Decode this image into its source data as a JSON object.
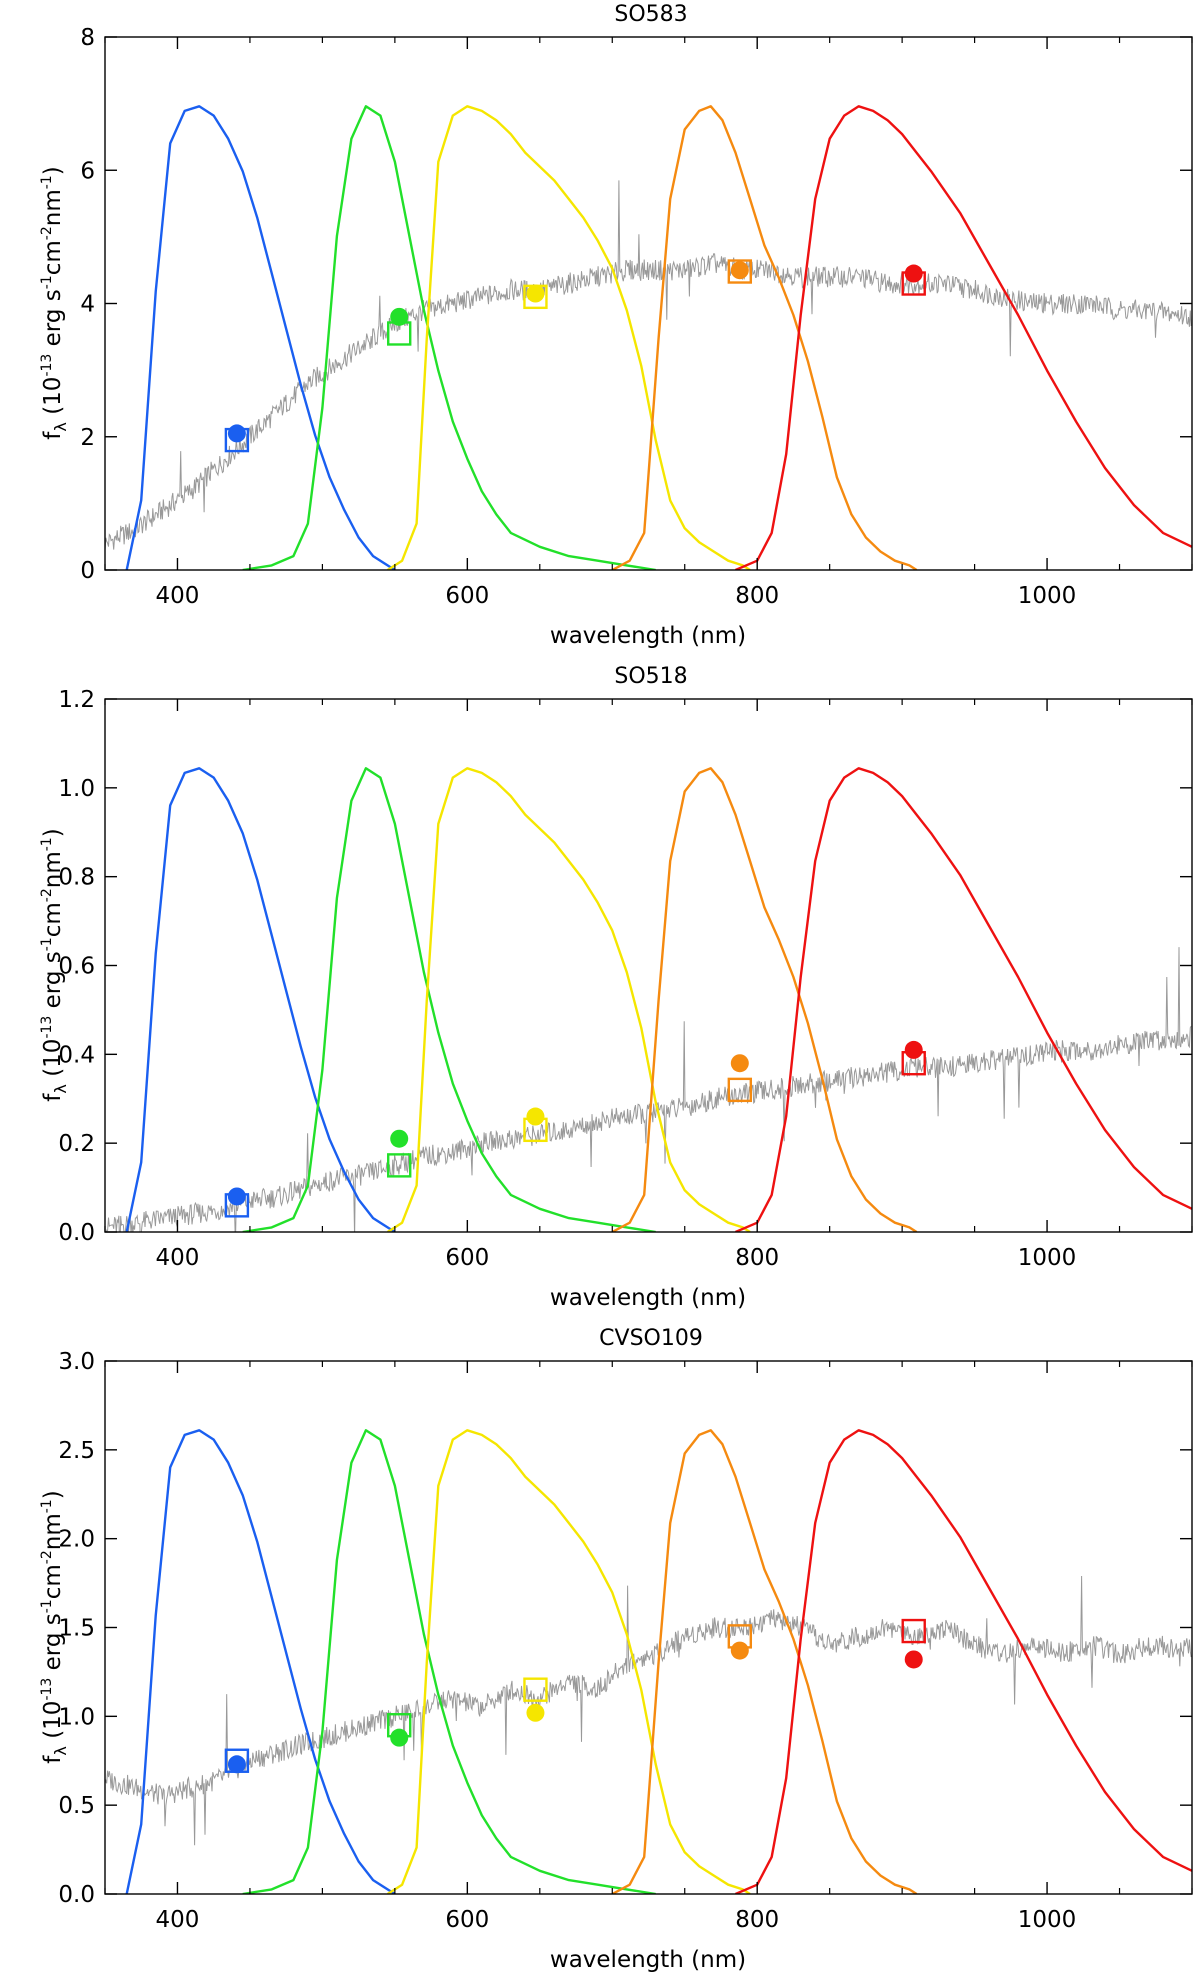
{
  "chart_data": [
    {
      "type": "line",
      "title": "SO583",
      "xlabel": "wavelength (nm)",
      "ylabel_parts": {
        "f": "f",
        "sub": "λ",
        "open": " (10",
        "exp1": "-13",
        "erg": " erg s",
        "exp2": "-1",
        "cm": "cm",
        "exp3": "-2",
        "nm": "nm",
        "exp4": "-1",
        "close": ")"
      },
      "xlim": [
        350,
        1100
      ],
      "ylim": [
        0,
        8
      ],
      "xticks": [
        400,
        600,
        800,
        1000
      ],
      "yticks": [
        0,
        2,
        4,
        6,
        8
      ],
      "ytick_labels": [
        "0",
        "2",
        "4",
        "6",
        "8"
      ],
      "spectrum": {
        "x": [
          350,
          370,
          390,
          410,
          430,
          450,
          470,
          490,
          510,
          530,
          550,
          570,
          590,
          610,
          630,
          650,
          670,
          690,
          710,
          730,
          750,
          770,
          790,
          810,
          830,
          850,
          870,
          890,
          910,
          930,
          950,
          970,
          990,
          1010,
          1030,
          1050,
          1070,
          1100
        ],
        "y": [
          0.4,
          0.6,
          0.9,
          1.2,
          1.6,
          2.0,
          2.4,
          2.8,
          3.1,
          3.4,
          3.7,
          3.9,
          4.0,
          4.1,
          4.2,
          4.2,
          4.3,
          4.4,
          4.5,
          4.5,
          4.5,
          4.6,
          4.5,
          4.5,
          4.4,
          4.4,
          4.4,
          4.3,
          4.3,
          4.3,
          4.2,
          4.1,
          4.0,
          4.0,
          4.0,
          3.9,
          3.9,
          3.8
        ]
      },
      "synthetic_photometry": [
        {
          "band": "blue",
          "x": 441,
          "y": 1.95
        },
        {
          "band": "green",
          "x": 553,
          "y": 3.55
        },
        {
          "band": "yellow",
          "x": 647,
          "y": 4.1
        },
        {
          "band": "orange",
          "x": 788,
          "y": 4.48
        },
        {
          "band": "red",
          "x": 908,
          "y": 4.3
        }
      ],
      "observed_photometry": [
        {
          "band": "blue",
          "x": 441,
          "y": 2.05
        },
        {
          "band": "green",
          "x": 553,
          "y": 3.8
        },
        {
          "band": "yellow",
          "x": 647,
          "y": 4.15
        },
        {
          "band": "orange",
          "x": 788,
          "y": 4.5
        },
        {
          "band": "red",
          "x": 908,
          "y": 4.45
        }
      ]
    },
    {
      "type": "line",
      "title": "SO518",
      "xlabel": "wavelength (nm)",
      "ylabel_parts": {
        "f": "f",
        "sub": "λ",
        "open": " (10",
        "exp1": "-13",
        "erg": " erg s",
        "exp2": "-1",
        "cm": "cm",
        "exp3": "-2",
        "nm": "nm",
        "exp4": "-1",
        "close": ")"
      },
      "xlim": [
        350,
        1100
      ],
      "ylim": [
        0,
        1.2
      ],
      "xticks": [
        400,
        600,
        800,
        1000
      ],
      "yticks": [
        0,
        0.2,
        0.4,
        0.6,
        0.8,
        1.0,
        1.2
      ],
      "ytick_labels": [
        "0.0",
        "0.2",
        "0.4",
        "0.6",
        "0.8",
        "1.0",
        "1.2"
      ],
      "spectrum": {
        "x": [
          350,
          370,
          390,
          410,
          430,
          450,
          470,
          490,
          510,
          530,
          550,
          570,
          590,
          610,
          630,
          650,
          670,
          690,
          710,
          730,
          750,
          770,
          790,
          810,
          830,
          850,
          870,
          890,
          910,
          930,
          950,
          970,
          990,
          1010,
          1030,
          1050,
          1070,
          1100
        ],
        "y": [
          0.01,
          0.02,
          0.03,
          0.04,
          0.05,
          0.07,
          0.08,
          0.1,
          0.12,
          0.13,
          0.15,
          0.17,
          0.18,
          0.2,
          0.21,
          0.22,
          0.23,
          0.25,
          0.26,
          0.27,
          0.28,
          0.3,
          0.31,
          0.32,
          0.33,
          0.34,
          0.35,
          0.36,
          0.37,
          0.37,
          0.38,
          0.39,
          0.4,
          0.41,
          0.41,
          0.42,
          0.43,
          0.44
        ]
      },
      "synthetic_photometry": [
        {
          "band": "blue",
          "x": 441,
          "y": 0.06
        },
        {
          "band": "green",
          "x": 553,
          "y": 0.15
        },
        {
          "band": "yellow",
          "x": 647,
          "y": 0.23
        },
        {
          "band": "orange",
          "x": 788,
          "y": 0.32
        },
        {
          "band": "red",
          "x": 908,
          "y": 0.38
        }
      ],
      "observed_photometry": [
        {
          "band": "blue",
          "x": 441,
          "y": 0.08
        },
        {
          "band": "green",
          "x": 553,
          "y": 0.21
        },
        {
          "band": "yellow",
          "x": 647,
          "y": 0.26
        },
        {
          "band": "orange",
          "x": 788,
          "y": 0.38
        },
        {
          "band": "red",
          "x": 908,
          "y": 0.41
        }
      ]
    },
    {
      "type": "line",
      "title": "CVSO109",
      "xlabel": "wavelength (nm)",
      "ylabel_parts": {
        "f": "f",
        "sub": "λ",
        "open": " (10",
        "exp1": "-13",
        "erg": " erg s",
        "exp2": "-1",
        "cm": "cm",
        "exp3": "-2",
        "nm": "nm",
        "exp4": "-1",
        "close": ")"
      },
      "xlim": [
        350,
        1100
      ],
      "ylim": [
        0,
        3.0
      ],
      "xticks": [
        400,
        600,
        800,
        1000
      ],
      "yticks": [
        0,
        0.5,
        1.0,
        1.5,
        2.0,
        2.5,
        3.0
      ],
      "ytick_labels": [
        "0.0",
        "0.5",
        "1.0",
        "1.5",
        "2.0",
        "2.5",
        "3.0"
      ],
      "spectrum": {
        "x": [
          350,
          370,
          390,
          410,
          430,
          450,
          470,
          490,
          510,
          530,
          550,
          570,
          590,
          610,
          630,
          650,
          670,
          690,
          710,
          730,
          750,
          770,
          790,
          810,
          830,
          850,
          870,
          890,
          910,
          930,
          950,
          970,
          990,
          1010,
          1030,
          1050,
          1070,
          1100
        ],
        "y": [
          0.65,
          0.6,
          0.55,
          0.6,
          0.65,
          0.75,
          0.8,
          0.85,
          0.9,
          0.95,
          1.0,
          1.05,
          1.1,
          1.05,
          1.15,
          1.1,
          1.2,
          1.15,
          1.3,
          1.35,
          1.45,
          1.5,
          1.5,
          1.55,
          1.5,
          1.4,
          1.45,
          1.5,
          1.45,
          1.5,
          1.4,
          1.35,
          1.4,
          1.35,
          1.4,
          1.35,
          1.4,
          1.38
        ]
      },
      "synthetic_photometry": [
        {
          "band": "blue",
          "x": 441,
          "y": 0.75
        },
        {
          "band": "green",
          "x": 553,
          "y": 0.95
        },
        {
          "band": "yellow",
          "x": 647,
          "y": 1.15
        },
        {
          "band": "orange",
          "x": 788,
          "y": 1.45
        },
        {
          "band": "red",
          "x": 908,
          "y": 1.48
        }
      ],
      "observed_photometry": [
        {
          "band": "blue",
          "x": 441,
          "y": 0.73
        },
        {
          "band": "green",
          "x": 553,
          "y": 0.88
        },
        {
          "band": "yellow",
          "x": 647,
          "y": 1.02
        },
        {
          "band": "orange",
          "x": 788,
          "y": 1.37
        },
        {
          "band": "red",
          "x": 908,
          "y": 1.32
        }
      ]
    }
  ],
  "filters": [
    {
      "name": "blue",
      "color": "#1a5ff0",
      "x": [
        365,
        375,
        385,
        395,
        405,
        415,
        425,
        435,
        445,
        455,
        465,
        475,
        485,
        495,
        505,
        515,
        525,
        535,
        545,
        550
      ],
      "t": [
        0.0,
        0.15,
        0.6,
        0.92,
        0.99,
        1.0,
        0.98,
        0.93,
        0.86,
        0.76,
        0.64,
        0.52,
        0.4,
        0.29,
        0.2,
        0.13,
        0.07,
        0.03,
        0.01,
        0.0
      ]
    },
    {
      "name": "green",
      "color": "#22e02a",
      "x": [
        445,
        465,
        480,
        490,
        500,
        510,
        520,
        530,
        540,
        550,
        560,
        570,
        580,
        590,
        600,
        610,
        620,
        630,
        650,
        670,
        690,
        710,
        730
      ],
      "t": [
        0.0,
        0.01,
        0.03,
        0.1,
        0.35,
        0.72,
        0.93,
        1.0,
        0.98,
        0.88,
        0.72,
        0.56,
        0.43,
        0.32,
        0.24,
        0.17,
        0.12,
        0.08,
        0.05,
        0.03,
        0.02,
        0.01,
        0.0
      ]
    },
    {
      "name": "yellow",
      "color": "#f5e600",
      "x": [
        545,
        555,
        565,
        572,
        580,
        590,
        600,
        610,
        620,
        630,
        640,
        650,
        660,
        670,
        680,
        690,
        700,
        710,
        720,
        730,
        740,
        750,
        760,
        770,
        780,
        790,
        795
      ],
      "t": [
        0.0,
        0.02,
        0.1,
        0.5,
        0.88,
        0.98,
        1.0,
        0.99,
        0.97,
        0.94,
        0.9,
        0.87,
        0.84,
        0.8,
        0.76,
        0.71,
        0.65,
        0.56,
        0.44,
        0.28,
        0.15,
        0.09,
        0.06,
        0.04,
        0.02,
        0.01,
        0.0
      ]
    },
    {
      "name": "orange",
      "color": "#f58a10",
      "x": [
        700,
        712,
        722,
        732,
        740,
        750,
        760,
        768,
        776,
        785,
        795,
        805,
        815,
        825,
        835,
        845,
        855,
        865,
        875,
        885,
        895,
        905,
        910
      ],
      "t": [
        0.0,
        0.02,
        0.08,
        0.5,
        0.8,
        0.95,
        0.99,
        1.0,
        0.97,
        0.9,
        0.8,
        0.7,
        0.63,
        0.55,
        0.45,
        0.33,
        0.2,
        0.12,
        0.07,
        0.04,
        0.02,
        0.01,
        0.0
      ]
    },
    {
      "name": "red",
      "color": "#ee1111",
      "x": [
        785,
        800,
        810,
        820,
        830,
        840,
        850,
        860,
        870,
        880,
        890,
        900,
        910,
        920,
        940,
        960,
        980,
        1000,
        1020,
        1040,
        1060,
        1080,
        1100
      ],
      "t": [
        0.0,
        0.02,
        0.08,
        0.25,
        0.55,
        0.8,
        0.93,
        0.98,
        1.0,
        0.99,
        0.97,
        0.94,
        0.9,
        0.86,
        0.77,
        0.66,
        0.55,
        0.43,
        0.32,
        0.22,
        0.14,
        0.08,
        0.05
      ]
    }
  ]
}
